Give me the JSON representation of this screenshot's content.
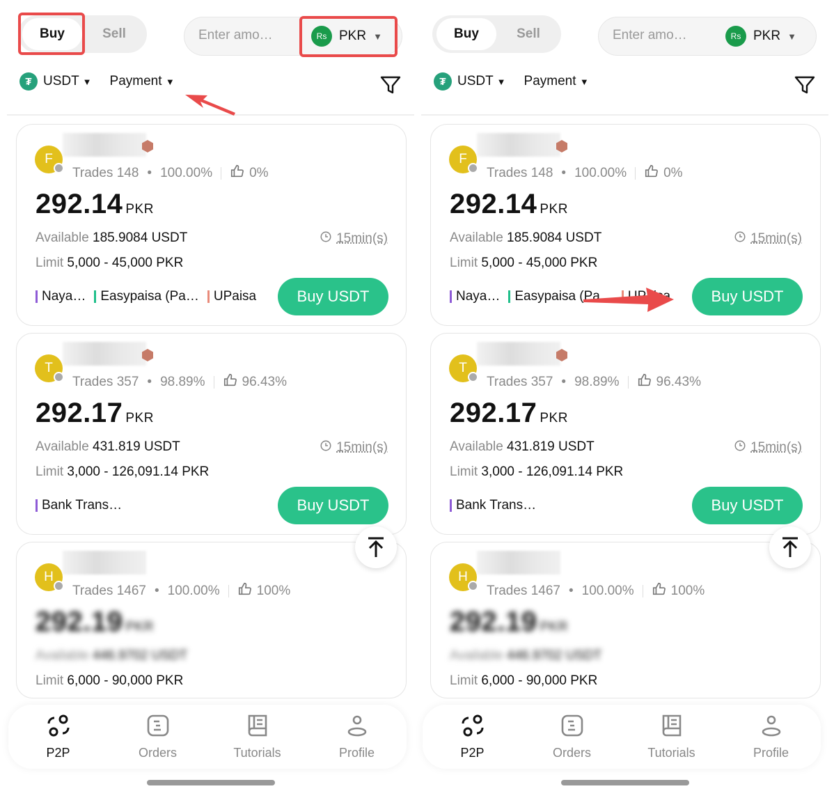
{
  "panels": [
    {
      "top": {
        "buy": "Buy",
        "sell": "Sell",
        "amount_placeholder": "Enter amo…",
        "currency": "PKR",
        "currency_symbol": "Rs"
      },
      "filters": {
        "crypto": "USDT",
        "payment": "Payment"
      },
      "cards": [
        {
          "initial": "F",
          "trades": "Trades 148",
          "completion": "100.00%",
          "rating": "0%",
          "price": "292.14",
          "unit": "PKR",
          "available_label": "Available",
          "available": "185.9084 USDT",
          "limit_label": "Limit",
          "limit": "5,000 - 45,000 PKR",
          "time": "15min(s)",
          "payments": [
            "Naya…",
            "Easypaisa (Pa…",
            "UPaisa"
          ],
          "button": "Buy USDT"
        },
        {
          "initial": "T",
          "trades": "Trades 357",
          "completion": "98.89%",
          "rating": "96.43%",
          "price": "292.17",
          "unit": "PKR",
          "available_label": "Available",
          "available": "431.819 USDT",
          "limit_label": "Limit",
          "limit": "3,000 - 126,091.14 PKR",
          "time": "15min(s)",
          "payments": [
            "Bank Trans…"
          ],
          "button": "Buy USDT"
        },
        {
          "initial": "H",
          "trades": "Trades 1467",
          "completion": "100.00%",
          "rating": "100%",
          "price": "292.19",
          "unit": "PKR",
          "available_label": "Available",
          "available": "446.9702 USDT",
          "limit_label": "Limit",
          "limit": "6,000 - 90,000 PKR"
        }
      ],
      "nav": [
        "P2P",
        "Orders",
        "Tutorials",
        "Profile"
      ]
    },
    {
      "top": {
        "buy": "Buy",
        "sell": "Sell",
        "amount_placeholder": "Enter amo…",
        "currency": "PKR",
        "currency_symbol": "Rs"
      },
      "filters": {
        "crypto": "USDT",
        "payment": "Payment"
      },
      "cards": [
        {
          "initial": "F",
          "trades": "Trades 148",
          "completion": "100.00%",
          "rating": "0%",
          "price": "292.14",
          "unit": "PKR",
          "available_label": "Available",
          "available": "185.9084 USDT",
          "limit_label": "Limit",
          "limit": "5,000 - 45,000 PKR",
          "time": "15min(s)",
          "payments": [
            "Naya…",
            "Easypaisa (Pa…",
            "UPaisa"
          ],
          "button": "Buy USDT"
        },
        {
          "initial": "T",
          "trades": "Trades 357",
          "completion": "98.89%",
          "rating": "96.43%",
          "price": "292.17",
          "unit": "PKR",
          "available_label": "Available",
          "available": "431.819 USDT",
          "limit_label": "Limit",
          "limit": "3,000 - 126,091.14 PKR",
          "time": "15min(s)",
          "payments": [
            "Bank Trans…"
          ],
          "button": "Buy USDT"
        },
        {
          "initial": "H",
          "trades": "Trades 1467",
          "completion": "100.00%",
          "rating": "100%",
          "price": "292.19",
          "unit": "PKR",
          "available_label": "Available",
          "available": "446.9702 USDT",
          "limit_label": "Limit",
          "limit": "6,000 - 90,000 PKR"
        }
      ],
      "nav": [
        "P2P",
        "Orders",
        "Tutorials",
        "Profile"
      ]
    }
  ],
  "colors": {
    "accent": "#2ac28a",
    "annotation": "#e94a4a",
    "pay_bars": [
      "#8e5bd6",
      "#1fbf8a",
      "#e98a7a"
    ]
  }
}
